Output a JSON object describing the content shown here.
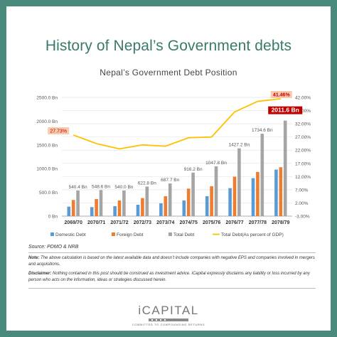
{
  "page_title": "History of Nepal’s Government debts",
  "source": "Source: PDMO & NRB",
  "note_label": "Note:",
  "note_text": "The above calculation is based on the latest available data and doesn’t include companies with negative EPS and companies involved in mergers and acquisitions.",
  "disclaimer_label": "Disclaimer:",
  "disclaimer_text": "Nothing contained in this post should be construed as investment advice. iCapital expressly disclaims any liability or loss incurred by any person who acts on the information, ideas or strategies discussed herein.",
  "logo": {
    "name": "iCAPITAL",
    "tagline": "COMMITTED TO COMPOUNDING RETURNS"
  },
  "colors": {
    "background": "#4a8a7c",
    "title": "#3a7a6c",
    "domestic": "#5b9bd5",
    "foreign": "#ed7d31",
    "total": "#a5a5a5",
    "percent": "#ffc000",
    "highlight_box": "#c00000",
    "label_box": "#f8cbad"
  },
  "chart_data": {
    "type": "bar",
    "title": "Nepal’s Government Debt Position",
    "categories": [
      "2069/70",
      "2070/71",
      "2071/72",
      "2072/73",
      "2073/74",
      "2074/75",
      "2075/76",
      "2076/77",
      "2077/78",
      "2078/79"
    ],
    "series": [
      {
        "name": "Domestic Debt",
        "type": "bar",
        "axis": "left",
        "values": [
          200,
          190,
          210,
          240,
          270,
          330,
          420,
          590,
          800,
          980
        ]
      },
      {
        "name": "Foreign Debt",
        "type": "bar",
        "axis": "left",
        "values": [
          340,
          360,
          330,
          380,
          420,
          580,
          630,
          830,
          930,
          1030
        ]
      },
      {
        "name": "Total Debt",
        "type": "bar",
        "axis": "left",
        "values": [
          540.4,
          548.6,
          540.0,
          622.8,
          687.7,
          916.2,
          1047.8,
          1427.2,
          1734.6,
          2011.6
        ]
      },
      {
        "name": "Total Debt(As percent of GDP)",
        "type": "line",
        "axis": "right",
        "values": [
          27.73,
          24.5,
          22.5,
          24.0,
          23.5,
          26.7,
          27.0,
          36.5,
          40.5,
          41.46
        ]
      }
    ],
    "data_labels": [
      "540.4 Bn",
      "548.6 Bn",
      "540.0 Bn",
      "622.8 Bn",
      "687.7 Bn",
      "916.2 Bn",
      "1047.8 Bn",
      "1427.2 Bn",
      "1734.6 Bn",
      "2011.6 Bn"
    ],
    "percent_callouts": [
      "27.73%",
      "41.46%"
    ],
    "y_left": {
      "ticks": [
        "0 Bn",
        "500.0 Bn",
        "1000.0 Bn",
        "1500.0 Bn",
        "2000.0 Bn",
        "2500.0 Bn"
      ],
      "range": [
        0,
        2500
      ]
    },
    "y_right": {
      "ticks": [
        "-3.00%",
        "2.00%",
        "7.00%",
        "12.00%",
        "17.00%",
        "22.00%",
        "27.00%",
        "32.00%",
        "37.00%",
        "42.00%"
      ],
      "range": [
        -3,
        42
      ]
    },
    "grid": true,
    "legend_position": "bottom"
  }
}
